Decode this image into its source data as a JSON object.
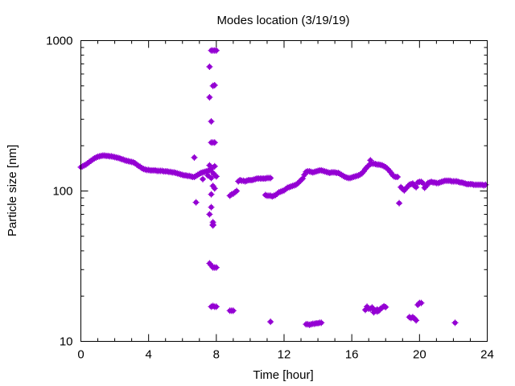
{
  "chart_data": {
    "type": "scatter",
    "title": "Modes location (3/19/19)",
    "xlabel": "Time [hour]",
    "ylabel": "Particle size [nm]",
    "xlim": [
      0,
      24
    ],
    "ylim": [
      10,
      1000
    ],
    "yscale": "log",
    "xticks": [
      0,
      4,
      8,
      12,
      16,
      20,
      24
    ],
    "xtick_labels": [
      "0",
      "4",
      "8",
      "12",
      "16",
      "20",
      "24"
    ],
    "yticks": [
      10,
      100,
      1000
    ],
    "ytick_labels": [
      "10",
      "100",
      "1000"
    ],
    "grid": false,
    "marker_color": "#9400d3",
    "series": [
      {
        "values": [
          [
            0.0,
            144
          ],
          [
            0.1,
            146
          ],
          [
            0.2,
            148
          ],
          [
            0.3,
            150
          ],
          [
            0.4,
            153
          ],
          [
            0.5,
            156
          ],
          [
            0.6,
            159
          ],
          [
            0.7,
            162
          ],
          [
            0.8,
            165
          ],
          [
            0.9,
            167
          ],
          [
            1.0,
            169
          ],
          [
            1.1,
            170
          ],
          [
            1.2,
            171
          ],
          [
            1.3,
            172
          ],
          [
            1.4,
            172
          ],
          [
            1.5,
            171
          ],
          [
            1.6,
            171
          ],
          [
            1.7,
            170
          ],
          [
            1.8,
            170
          ],
          [
            1.9,
            169
          ],
          [
            2.0,
            168
          ],
          [
            2.1,
            167
          ],
          [
            2.2,
            166
          ],
          [
            2.3,
            165
          ],
          [
            2.4,
            163
          ],
          [
            2.5,
            162
          ],
          [
            2.6,
            160
          ],
          [
            2.7,
            159
          ],
          [
            2.8,
            158
          ],
          [
            2.9,
            157
          ],
          [
            3.0,
            156
          ],
          [
            3.1,
            155
          ],
          [
            3.2,
            153
          ],
          [
            3.3,
            150
          ],
          [
            3.4,
            147
          ],
          [
            3.5,
            145
          ],
          [
            3.6,
            142
          ],
          [
            3.7,
            140
          ],
          [
            3.8,
            139
          ],
          [
            3.9,
            138
          ],
          [
            4.0,
            138
          ],
          [
            4.1,
            137
          ],
          [
            4.2,
            137
          ],
          [
            4.3,
            137
          ],
          [
            4.4,
            137
          ],
          [
            4.5,
            136
          ],
          [
            4.6,
            136
          ],
          [
            4.7,
            136
          ],
          [
            4.8,
            136
          ],
          [
            4.9,
            135
          ],
          [
            5.0,
            135
          ],
          [
            5.1,
            135
          ],
          [
            5.2,
            134
          ],
          [
            5.3,
            134
          ],
          [
            5.4,
            133
          ],
          [
            5.5,
            133
          ],
          [
            5.6,
            132
          ],
          [
            5.7,
            131
          ],
          [
            5.8,
            130
          ],
          [
            5.9,
            129
          ],
          [
            6.0,
            128
          ],
          [
            6.1,
            127
          ],
          [
            6.2,
            127
          ],
          [
            6.3,
            126
          ],
          [
            6.4,
            126
          ],
          [
            6.5,
            125
          ],
          [
            6.6,
            124
          ],
          [
            6.7,
            124
          ],
          [
            6.8,
            126
          ],
          [
            6.9,
            128
          ],
          [
            7.0,
            130
          ],
          [
            7.1,
            132
          ],
          [
            7.2,
            133
          ],
          [
            7.3,
            134
          ],
          [
            7.4,
            135
          ],
          [
            7.5,
            136
          ],
          [
            7.6,
            138
          ],
          [
            7.7,
            140
          ],
          [
            7.8,
            132
          ],
          [
            7.9,
            128
          ],
          [
            8.0,
            125
          ],
          [
            6.7,
            167
          ],
          [
            6.8,
            84
          ],
          [
            7.2,
            120
          ],
          [
            7.5,
            127
          ],
          [
            7.6,
            148
          ],
          [
            7.7,
            122
          ],
          [
            7.9,
            146
          ],
          [
            7.8,
            108
          ],
          [
            7.9,
            104
          ],
          [
            7.7,
            95
          ],
          [
            7.6,
            70
          ],
          [
            7.7,
            78
          ],
          [
            7.8,
            62
          ],
          [
            7.8,
            59
          ],
          [
            7.8,
            60
          ],
          [
            7.6,
            33
          ],
          [
            7.7,
            32
          ],
          [
            7.8,
            31
          ],
          [
            7.9,
            31
          ],
          [
            8.0,
            31
          ],
          [
            7.7,
            17
          ],
          [
            7.8,
            17.2
          ],
          [
            7.9,
            17
          ],
          [
            8.0,
            17
          ],
          [
            7.6,
            420
          ],
          [
            7.6,
            670
          ],
          [
            7.7,
            860
          ],
          [
            7.8,
            860
          ],
          [
            7.9,
            860
          ],
          [
            8.0,
            860
          ],
          [
            7.8,
            500
          ],
          [
            7.9,
            505
          ],
          [
            7.7,
            290
          ],
          [
            7.7,
            210
          ],
          [
            7.8,
            210
          ],
          [
            7.9,
            210
          ],
          [
            8.8,
            16
          ],
          [
            8.9,
            16
          ],
          [
            9.0,
            16
          ],
          [
            8.8,
            93
          ],
          [
            8.9,
            95
          ],
          [
            9.0,
            96
          ],
          [
            9.1,
            98
          ],
          [
            9.2,
            100
          ],
          [
            9.3,
            116
          ],
          [
            9.4,
            118
          ],
          [
            9.5,
            117
          ],
          [
            9.6,
            117
          ],
          [
            9.7,
            116
          ],
          [
            9.8,
            117
          ],
          [
            9.9,
            118
          ],
          [
            10.0,
            118
          ],
          [
            10.1,
            118
          ],
          [
            10.2,
            119
          ],
          [
            10.3,
            120
          ],
          [
            10.4,
            121
          ],
          [
            10.5,
            121
          ],
          [
            10.6,
            121
          ],
          [
            10.7,
            121
          ],
          [
            10.8,
            121
          ],
          [
            10.9,
            121
          ],
          [
            11.0,
            122
          ],
          [
            11.1,
            122
          ],
          [
            11.2,
            122
          ],
          [
            10.9,
            94
          ],
          [
            11.0,
            93
          ],
          [
            11.1,
            93
          ],
          [
            11.2,
            93
          ],
          [
            11.3,
            92
          ],
          [
            11.4,
            93
          ],
          [
            11.5,
            94
          ],
          [
            11.6,
            96
          ],
          [
            11.7,
            98
          ],
          [
            11.8,
            99
          ],
          [
            11.9,
            100
          ],
          [
            12.0,
            101
          ],
          [
            12.1,
            103
          ],
          [
            12.2,
            105
          ],
          [
            12.3,
            106
          ],
          [
            12.4,
            107
          ],
          [
            12.5,
            108
          ],
          [
            12.6,
            109
          ],
          [
            12.7,
            110
          ],
          [
            12.8,
            112
          ],
          [
            12.9,
            115
          ],
          [
            13.0,
            118
          ],
          [
            13.1,
            121
          ],
          [
            13.2,
            128
          ],
          [
            13.3,
            134
          ],
          [
            13.4,
            135
          ],
          [
            13.5,
            135
          ],
          [
            13.6,
            134
          ],
          [
            13.7,
            133
          ],
          [
            13.8,
            134
          ],
          [
            13.9,
            135
          ],
          [
            14.0,
            136
          ],
          [
            14.1,
            137
          ],
          [
            14.2,
            137
          ],
          [
            14.3,
            136
          ],
          [
            14.4,
            135
          ],
          [
            14.5,
            134
          ],
          [
            14.6,
            133
          ],
          [
            14.7,
            132
          ],
          [
            14.8,
            133
          ],
          [
            14.9,
            133
          ],
          [
            15.0,
            133
          ],
          [
            15.1,
            132
          ],
          [
            15.2,
            132
          ],
          [
            15.3,
            130
          ],
          [
            15.4,
            128
          ],
          [
            15.5,
            126
          ],
          [
            15.6,
            124
          ],
          [
            15.7,
            123
          ],
          [
            15.8,
            122
          ],
          [
            15.9,
            122
          ],
          [
            16.0,
            123
          ],
          [
            16.1,
            124
          ],
          [
            16.2,
            125
          ],
          [
            16.3,
            126
          ],
          [
            16.4,
            127
          ],
          [
            16.5,
            129
          ],
          [
            16.6,
            131
          ],
          [
            16.7,
            135
          ],
          [
            16.8,
            140
          ],
          [
            16.9,
            144
          ],
          [
            17.0,
            148
          ],
          [
            17.1,
            151
          ],
          [
            17.2,
            152
          ],
          [
            17.3,
            152
          ],
          [
            17.4,
            151
          ],
          [
            17.5,
            150
          ],
          [
            17.6,
            150
          ],
          [
            17.7,
            149
          ],
          [
            17.8,
            148
          ],
          [
            17.9,
            146
          ],
          [
            18.0,
            144
          ],
          [
            18.1,
            141
          ],
          [
            18.2,
            137
          ],
          [
            18.3,
            133
          ],
          [
            18.4,
            128
          ],
          [
            18.5,
            125
          ],
          [
            18.6,
            124
          ],
          [
            18.7,
            124
          ],
          [
            17.1,
            160
          ],
          [
            18.8,
            83
          ],
          [
            18.9,
            106
          ],
          [
            19.0,
            103
          ],
          [
            19.1,
            101
          ],
          [
            19.2,
            104
          ],
          [
            19.3,
            107
          ],
          [
            19.4,
            110
          ],
          [
            19.5,
            111
          ],
          [
            19.6,
            112
          ],
          [
            19.7,
            108
          ],
          [
            19.8,
            106
          ],
          [
            19.9,
            114
          ],
          [
            20.0,
            115
          ],
          [
            20.1,
            115
          ],
          [
            20.2,
            113
          ],
          [
            20.3,
            105
          ],
          [
            20.4,
            108
          ],
          [
            20.5,
            113
          ],
          [
            20.6,
            114
          ],
          [
            20.7,
            115
          ],
          [
            20.8,
            114
          ],
          [
            20.9,
            114
          ],
          [
            21.0,
            113
          ],
          [
            21.1,
            113
          ],
          [
            21.2,
            114
          ],
          [
            21.3,
            115
          ],
          [
            21.4,
            116
          ],
          [
            21.5,
            117
          ],
          [
            21.6,
            117
          ],
          [
            21.7,
            117
          ],
          [
            21.8,
            117
          ],
          [
            21.9,
            116
          ],
          [
            22.0,
            116
          ],
          [
            22.1,
            116
          ],
          [
            22.2,
            116
          ],
          [
            22.3,
            115
          ],
          [
            22.4,
            114
          ],
          [
            22.5,
            114
          ],
          [
            22.6,
            113
          ],
          [
            22.7,
            112
          ],
          [
            22.8,
            111
          ],
          [
            22.9,
            111
          ],
          [
            23.0,
            111
          ],
          [
            23.1,
            111
          ],
          [
            23.2,
            110
          ],
          [
            23.3,
            110
          ],
          [
            23.4,
            110
          ],
          [
            23.5,
            110
          ],
          [
            23.6,
            110
          ],
          [
            23.7,
            110
          ],
          [
            23.8,
            109
          ],
          [
            23.9,
            110
          ],
          [
            11.2,
            13.5
          ],
          [
            13.3,
            13
          ],
          [
            13.4,
            13
          ],
          [
            13.5,
            12.9
          ],
          [
            13.6,
            13
          ],
          [
            13.7,
            13.1
          ],
          [
            13.8,
            13.1
          ],
          [
            13.9,
            13.2
          ],
          [
            14.0,
            13.2
          ],
          [
            14.1,
            13.3
          ],
          [
            14.2,
            13.3
          ],
          [
            16.8,
            16.2
          ],
          [
            16.9,
            17
          ],
          [
            17.0,
            16.5
          ],
          [
            17.1,
            16.5
          ],
          [
            17.2,
            16.8
          ],
          [
            17.3,
            16.2
          ],
          [
            17.4,
            16
          ],
          [
            17.5,
            15.8
          ],
          [
            17.6,
            16
          ],
          [
            17.7,
            16.5
          ],
          [
            17.8,
            16.8
          ],
          [
            17.9,
            17.1
          ],
          [
            18.0,
            16.9
          ],
          [
            17.3,
            15.6
          ],
          [
            17.5,
            16.3
          ],
          [
            19.4,
            14.5
          ],
          [
            19.5,
            14.3
          ],
          [
            19.6,
            14.5
          ],
          [
            19.7,
            14.2
          ],
          [
            19.8,
            13.8
          ],
          [
            19.9,
            17.5
          ],
          [
            20.0,
            18
          ],
          [
            20.1,
            18
          ],
          [
            22.1,
            13.3
          ]
        ]
      }
    ]
  }
}
